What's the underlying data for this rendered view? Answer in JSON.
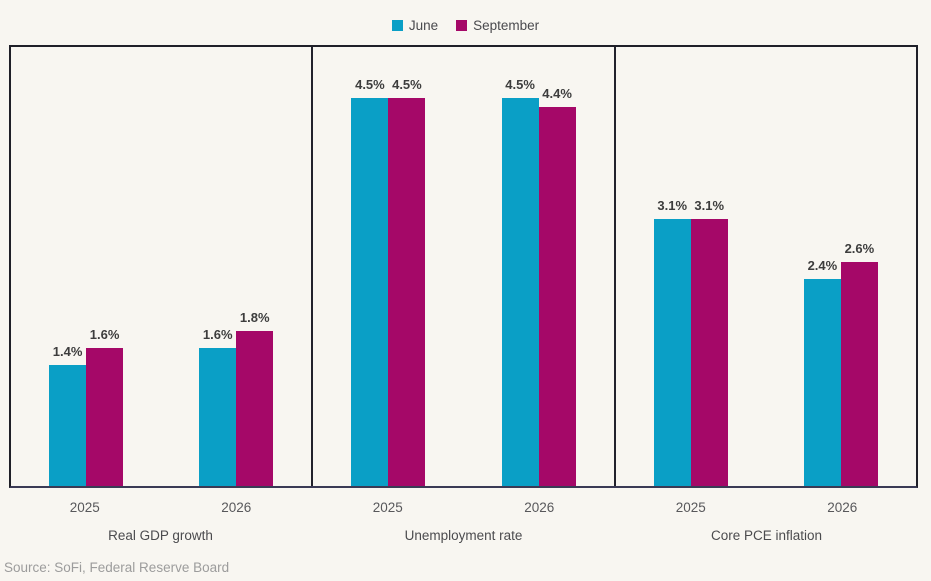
{
  "legend": {
    "items": [
      {
        "label": "June",
        "color": "#0A9FC6"
      },
      {
        "label": "September",
        "color": "#A50868"
      }
    ]
  },
  "chart_data": {
    "type": "bar",
    "title": "",
    "value_suffix": "%",
    "ylim": [
      0,
      5.09
    ],
    "grid": false,
    "legend_position": "top-center",
    "series_colors": {
      "June": "#0A9FC6",
      "September": "#A50868"
    },
    "panels": [
      {
        "label": "Real GDP growth",
        "categories": [
          "2025",
          "2026"
        ],
        "series": [
          {
            "name": "June",
            "values": [
              1.4,
              1.6
            ]
          },
          {
            "name": "September",
            "values": [
              1.6,
              1.8
            ]
          }
        ]
      },
      {
        "label": "Unemployment rate",
        "categories": [
          "2025",
          "2026"
        ],
        "series": [
          {
            "name": "June",
            "values": [
              4.5,
              4.5
            ]
          },
          {
            "name": "September",
            "values": [
              4.5,
              4.4
            ]
          }
        ]
      },
      {
        "label": "Core PCE inflation",
        "categories": [
          "2025",
          "2026"
        ],
        "series": [
          {
            "name": "June",
            "values": [
              3.1,
              2.4
            ]
          },
          {
            "name": "September",
            "values": [
              3.1,
              2.6
            ]
          }
        ]
      }
    ]
  },
  "source": {
    "text": "Source: SoFi, Federal Reserve Board"
  }
}
